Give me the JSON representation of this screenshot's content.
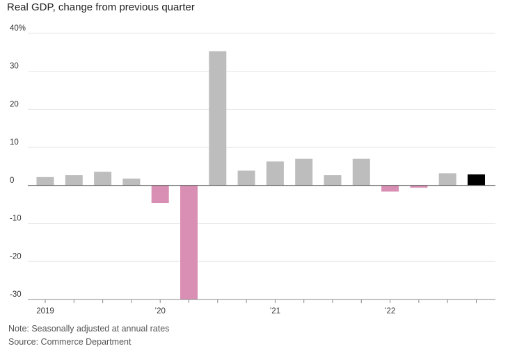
{
  "chart_data": {
    "type": "bar",
    "title": "Real GDP, change from previous quarter",
    "xlabel": "",
    "ylabel": "",
    "ylim": [
      -30,
      40
    ],
    "yticks": [
      {
        "value": 40,
        "label": "40%"
      },
      {
        "value": 30,
        "label": "30"
      },
      {
        "value": 20,
        "label": "20"
      },
      {
        "value": 10,
        "label": "10"
      },
      {
        "value": 0,
        "label": "0"
      },
      {
        "value": -10,
        "label": "-10"
      },
      {
        "value": -20,
        "label": "-20"
      },
      {
        "value": -30,
        "label": "-30"
      }
    ],
    "categories": [
      "2019 Q1",
      "2019 Q2",
      "2019 Q3",
      "2019 Q4",
      "2020 Q1",
      "2020 Q2",
      "2020 Q3",
      "2020 Q4",
      "2021 Q1",
      "2021 Q2",
      "2021 Q3",
      "2021 Q4",
      "2022 Q1",
      "2022 Q2",
      "2022 Q3",
      "2022 Q4"
    ],
    "values": [
      2.2,
      2.7,
      3.6,
      1.8,
      -4.6,
      -29.9,
      35.3,
      3.9,
      6.3,
      7.0,
      2.7,
      7.0,
      -1.6,
      -0.6,
      3.2,
      2.9
    ],
    "x_tick_labels": [
      {
        "index": 0,
        "label": "2019"
      },
      {
        "index": 4,
        "label": "’20"
      },
      {
        "index": 8,
        "label": "’21"
      },
      {
        "index": 12,
        "label": "’22"
      }
    ],
    "grid": true,
    "colors": {
      "positive": "#bdbdbd",
      "negative": "#d98fb4",
      "highlight": "#000000",
      "grid": "#e6e6e6",
      "zero_line": "#555555",
      "axis": "#888888"
    },
    "highlight_index": 15
  },
  "footer": {
    "note": "Note: Seasonally adjusted at annual rates",
    "source": "Source: Commerce Department"
  }
}
